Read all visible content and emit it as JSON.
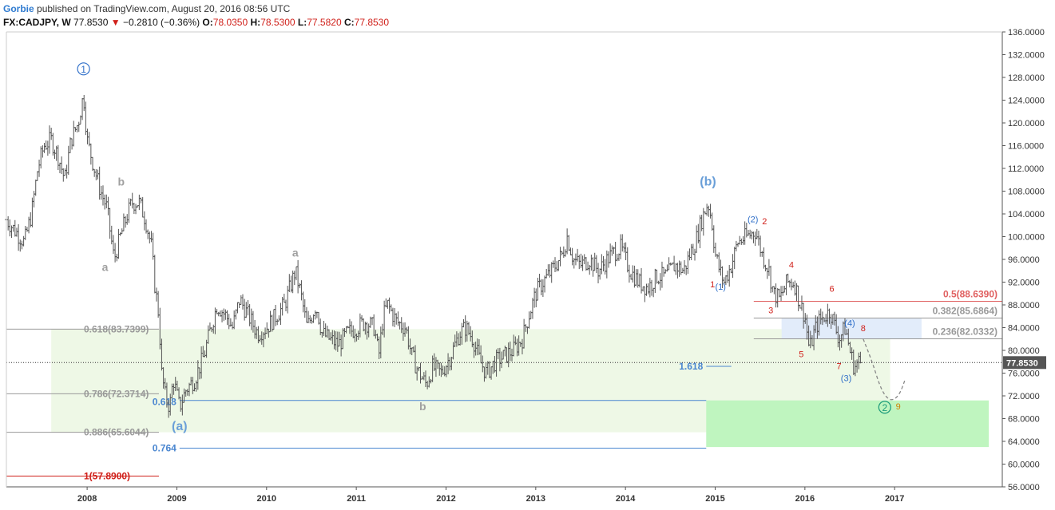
{
  "header": {
    "author": "Gorbie",
    "published": "published on TradingView.com, August 20, 2016 08:56 UTC",
    "symbol": "FX:CADJPY, W",
    "price": "77.8530",
    "change": "−0.2810 (−0.36%)",
    "open_label": "O:",
    "open": "78.0350",
    "high_label": "H:",
    "high": "78.5300",
    "low_label": "L:",
    "low": "77.5820",
    "close_label": "C:",
    "close": "77.8530"
  },
  "chart_data": {
    "type": "bar",
    "title": "",
    "symbol": "FX:CADJPY",
    "interval": "W",
    "x_tick_labels": [
      "2008",
      "2009",
      "2010",
      "2011",
      "2012",
      "2013",
      "2014",
      "2015",
      "2016",
      "2017"
    ],
    "x_ticks": [
      2008,
      2009,
      2010,
      2011,
      2012,
      2013,
      2014,
      2015,
      2016,
      2017
    ],
    "xlim": [
      2007.1,
      2018.2
    ],
    "ylim": [
      56,
      136
    ],
    "y_tick_labels": [
      "56.0000",
      "60.0000",
      "64.0000",
      "68.0000",
      "72.0000",
      "76.0000",
      "80.0000",
      "84.0000",
      "88.0000",
      "92.0000",
      "96.0000",
      "100.0000",
      "104.0000",
      "108.0000",
      "112.0000",
      "116.0000",
      "120.0000",
      "124.0000",
      "128.0000",
      "132.0000",
      "136.0000"
    ],
    "y_ticks": [
      56,
      60,
      64,
      68,
      72,
      76,
      80,
      84,
      88,
      92,
      96,
      100,
      104,
      108,
      112,
      116,
      120,
      124,
      128,
      132,
      136
    ],
    "last_price": 77.853,
    "last_price_label": "77.8530",
    "price_path": [
      [
        2007.1,
        103
      ],
      [
        2007.2,
        101
      ],
      [
        2007.3,
        99
      ],
      [
        2007.38,
        104
      ],
      [
        2007.45,
        112
      ],
      [
        2007.52,
        116
      ],
      [
        2007.6,
        117
      ],
      [
        2007.68,
        114
      ],
      [
        2007.75,
        110
      ],
      [
        2007.82,
        117
      ],
      [
        2007.9,
        120
      ],
      [
        2007.96,
        125
      ],
      [
        2008.0,
        117
      ],
      [
        2008.08,
        112
      ],
      [
        2008.15,
        108
      ],
      [
        2008.22,
        105
      ],
      [
        2008.3,
        96
      ],
      [
        2008.37,
        100
      ],
      [
        2008.45,
        104
      ],
      [
        2008.5,
        106
      ],
      [
        2008.58,
        106
      ],
      [
        2008.65,
        103
      ],
      [
        2008.72,
        98
      ],
      [
        2008.75,
        92
      ],
      [
        2008.8,
        86
      ],
      [
        2008.83,
        76
      ],
      [
        2008.87,
        72
      ],
      [
        2008.92,
        70
      ],
      [
        2008.96,
        75
      ],
      [
        2009.03,
        70
      ],
      [
        2009.1,
        73
      ],
      [
        2009.2,
        75
      ],
      [
        2009.3,
        79
      ],
      [
        2009.38,
        84
      ],
      [
        2009.45,
        88
      ],
      [
        2009.55,
        86
      ],
      [
        2009.62,
        84
      ],
      [
        2009.7,
        89
      ],
      [
        2009.8,
        86
      ],
      [
        2009.9,
        83
      ],
      [
        2010.0,
        84
      ],
      [
        2010.1,
        86
      ],
      [
        2010.2,
        88
      ],
      [
        2010.28,
        92
      ],
      [
        2010.32,
        94
      ],
      [
        2010.38,
        90
      ],
      [
        2010.45,
        84
      ],
      [
        2010.5,
        86
      ],
      [
        2010.55,
        88
      ],
      [
        2010.62,
        83
      ],
      [
        2010.7,
        82
      ],
      [
        2010.8,
        81
      ],
      [
        2010.9,
        83
      ],
      [
        2011.0,
        84
      ],
      [
        2011.1,
        85
      ],
      [
        2011.2,
        84
      ],
      [
        2011.25,
        79
      ],
      [
        2011.3,
        86
      ],
      [
        2011.35,
        88
      ],
      [
        2011.45,
        85
      ],
      [
        2011.55,
        84
      ],
      [
        2011.62,
        79
      ],
      [
        2011.7,
        76
      ],
      [
        2011.78,
        74
      ],
      [
        2011.85,
        77
      ],
      [
        2011.95,
        76
      ],
      [
        2012.05,
        79
      ],
      [
        2012.15,
        83
      ],
      [
        2012.22,
        84
      ],
      [
        2012.3,
        82
      ],
      [
        2012.38,
        78
      ],
      [
        2012.45,
        76
      ],
      [
        2012.55,
        78
      ],
      [
        2012.65,
        79
      ],
      [
        2012.75,
        80
      ],
      [
        2012.85,
        82
      ],
      [
        2012.92,
        86
      ],
      [
        2013.0,
        90
      ],
      [
        2013.08,
        92
      ],
      [
        2013.18,
        94
      ],
      [
        2013.3,
        97
      ],
      [
        2013.35,
        100
      ],
      [
        2013.42,
        96
      ],
      [
        2013.5,
        95
      ],
      [
        2013.6,
        96
      ],
      [
        2013.7,
        94
      ],
      [
        2013.85,
        97
      ],
      [
        2013.95,
        98
      ],
      [
        2014.05,
        94
      ],
      [
        2014.15,
        92
      ],
      [
        2014.25,
        91
      ],
      [
        2014.35,
        93
      ],
      [
        2014.45,
        93
      ],
      [
        2014.55,
        95
      ],
      [
        2014.65,
        94
      ],
      [
        2014.72,
        97
      ],
      [
        2014.78,
        99
      ],
      [
        2014.85,
        103
      ],
      [
        2014.92,
        106
      ],
      [
        2014.96,
        103
      ],
      [
        2015.0,
        97
      ],
      [
        2015.05,
        94
      ],
      [
        2015.1,
        92
      ],
      [
        2015.18,
        95
      ],
      [
        2015.25,
        99
      ],
      [
        2015.35,
        100
      ],
      [
        2015.45,
        101
      ],
      [
        2015.52,
        97
      ],
      [
        2015.6,
        94
      ],
      [
        2015.65,
        90
      ],
      [
        2015.72,
        89
      ],
      [
        2015.8,
        92
      ],
      [
        2015.88,
        92
      ],
      [
        2015.95,
        88
      ],
      [
        2016.0,
        86
      ],
      [
        2016.05,
        80
      ],
      [
        2016.1,
        83
      ],
      [
        2016.15,
        85
      ],
      [
        2016.22,
        86
      ],
      [
        2016.28,
        87
      ],
      [
        2016.32,
        85
      ],
      [
        2016.38,
        82
      ],
      [
        2016.45,
        84
      ],
      [
        2016.5,
        80
      ],
      [
        2016.55,
        77
      ],
      [
        2016.6,
        78
      ],
      [
        2016.63,
        77.85
      ]
    ],
    "fib_levels_left": [
      {
        "label": "0.618(83.7399)",
        "value": 83.7399,
        "color": "#999999"
      },
      {
        "label": "0.786(72.3714)",
        "value": 72.3714,
        "color": "#999999"
      },
      {
        "label": "0.886(65.6044)",
        "value": 65.6044,
        "color": "#999999"
      },
      {
        "label": "1(57.8900)",
        "value": 57.89,
        "color": "#d0201a"
      }
    ],
    "fib_levels_right": [
      {
        "label": "0.5(88.6390)",
        "value": 88.639,
        "color": "#e06060"
      },
      {
        "label": "0.382(85.6864)",
        "value": 85.6864,
        "color": "#999999"
      },
      {
        "label": "0.236(82.0332)",
        "value": 82.0332,
        "color": "#999999"
      }
    ],
    "blue_levels": [
      {
        "label": "0.618",
        "value": 71.2,
        "color": "#4a86d0"
      },
      {
        "label": "0.764",
        "value": 62.8,
        "color": "#4a86d0"
      },
      {
        "label": "1.618",
        "value": 77.2,
        "color": "#4a86d0"
      }
    ],
    "wave_labels": [
      {
        "text": "1",
        "x": 2007.96,
        "y": 129.5,
        "color": "#2f6fc9",
        "circle": true
      },
      {
        "text": "b",
        "x": 2008.38,
        "y": 109,
        "color": "#a0a0a0"
      },
      {
        "text": "a",
        "x": 2008.2,
        "y": 94,
        "color": "#a0a0a0"
      },
      {
        "text": "a",
        "x": 2010.32,
        "y": 96.5,
        "color": "#a0a0a0"
      },
      {
        "text": "b",
        "x": 2011.74,
        "y": 69.5,
        "color": "#a0a0a0"
      },
      {
        "text": "(a)",
        "x": 2009.03,
        "y": 66,
        "color": "#6a9fd8"
      },
      {
        "text": "(b)",
        "x": 2014.92,
        "y": 109,
        "color": "#6a9fd8"
      },
      {
        "text": "(1)",
        "x": 2015.06,
        "y": 90.7,
        "color": "#2f6fc9"
      },
      {
        "text": "1",
        "x": 2014.97,
        "y": 91.1,
        "color": "#d0201a"
      },
      {
        "text": "(2)",
        "x": 2015.42,
        "y": 102.5,
        "color": "#2f6fc9"
      },
      {
        "text": "2",
        "x": 2015.55,
        "y": 102.2,
        "color": "#d0201a"
      },
      {
        "text": "3",
        "x": 2015.62,
        "y": 86.5,
        "color": "#d0201a"
      },
      {
        "text": "4",
        "x": 2015.85,
        "y": 94.5,
        "color": "#d0201a"
      },
      {
        "text": "5",
        "x": 2015.96,
        "y": 78.8,
        "color": "#d0201a"
      },
      {
        "text": "6",
        "x": 2016.3,
        "y": 90.3,
        "color": "#d0201a"
      },
      {
        "text": "(4)",
        "x": 2016.5,
        "y": 84.3,
        "color": "#2f6fc9"
      },
      {
        "text": "8",
        "x": 2016.65,
        "y": 83.4,
        "color": "#d0201a"
      },
      {
        "text": "7",
        "x": 2016.38,
        "y": 76.7,
        "color": "#d0201a"
      },
      {
        "text": "(3)",
        "x": 2016.46,
        "y": 74.6,
        "color": "#2f6fc9"
      },
      {
        "text": "2",
        "x": 2016.89,
        "y": 70.0,
        "color": "#1a9a7a",
        "circle": true
      },
      {
        "text": "9",
        "x": 2017.04,
        "y": 69.6,
        "color": "#d08000"
      }
    ],
    "zones": [
      {
        "x0": 2007.6,
        "x1": 2016.95,
        "y0": 65.6,
        "y1": 83.74,
        "color": "#eef8e6"
      },
      {
        "x0": 2014.9,
        "x1": 2018.05,
        "y0": 63,
        "y1": 71.2,
        "color": "#bff5bf"
      },
      {
        "x0": 2015.74,
        "x1": 2017.3,
        "y0": 82.03,
        "y1": 85.69,
        "color": "#e2ecfa"
      }
    ],
    "projection": [
      [
        2016.65,
        82
      ],
      [
        2016.75,
        78
      ],
      [
        2016.85,
        73
      ],
      [
        2016.95,
        71
      ],
      [
        2017.05,
        72
      ],
      [
        2017.12,
        75
      ]
    ]
  }
}
